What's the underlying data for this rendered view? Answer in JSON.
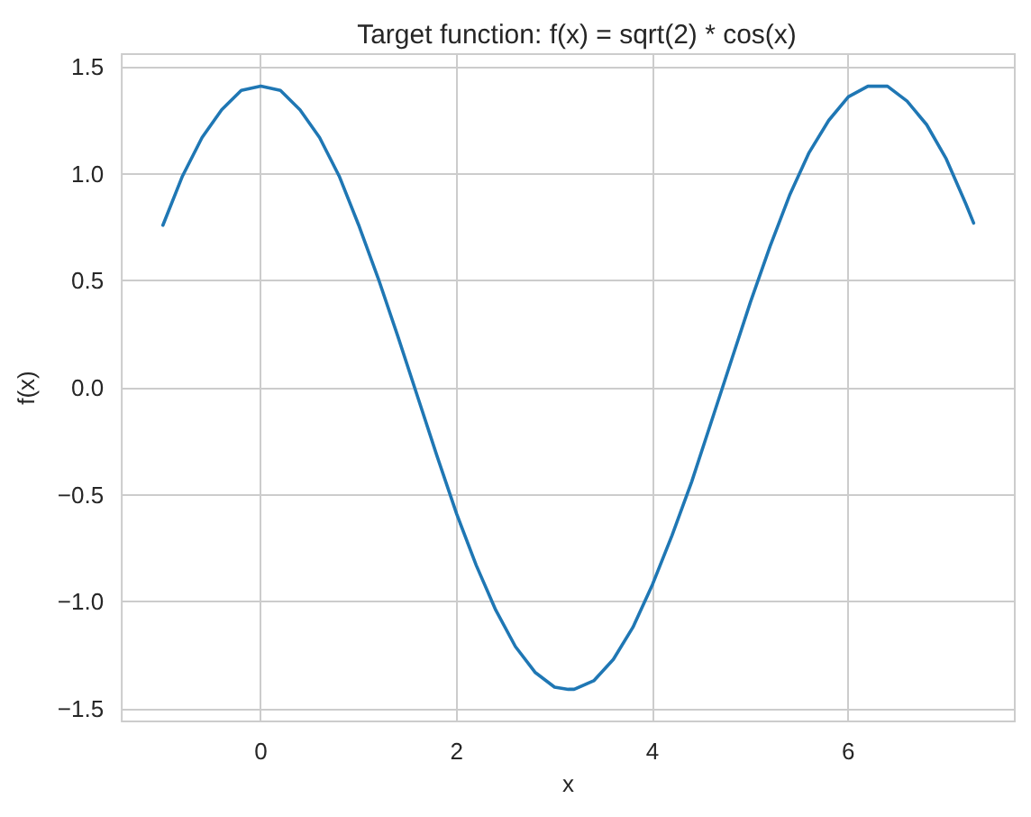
{
  "chart_data": {
    "type": "line",
    "title": "Target function: f(x) = sqrt(2) * cos(x)",
    "xlabel": "x",
    "ylabel": "f(x)",
    "x": [
      -1,
      -0.8,
      -0.6,
      -0.4,
      -0.2,
      0,
      0.2,
      0.4,
      0.6,
      0.8,
      1,
      1.2,
      1.4,
      1.6,
      1.8,
      2,
      2.2,
      2.4,
      2.6,
      2.8,
      3,
      3.14,
      3.2,
      3.4,
      3.6,
      3.8,
      4,
      4.2,
      4.4,
      4.6,
      4.8,
      5,
      5.2,
      5.4,
      5.6,
      5.8,
      6,
      6.2,
      6.28,
      6.4,
      6.6,
      6.8,
      7,
      7.2,
      7.28
    ],
    "values": [
      0.76,
      0.99,
      1.17,
      1.3,
      1.39,
      1.41,
      1.39,
      1.3,
      1.17,
      0.99,
      0.76,
      0.51,
      0.24,
      -0.04,
      -0.32,
      -0.59,
      -0.83,
      -1.04,
      -1.21,
      -1.33,
      -1.4,
      -1.41,
      -1.41,
      -1.37,
      -1.27,
      -1.12,
      -0.92,
      -0.69,
      -0.44,
      -0.16,
      0.12,
      0.4,
      0.66,
      0.9,
      1.1,
      1.25,
      1.36,
      1.41,
      1.41,
      1.41,
      1.34,
      1.23,
      1.07,
      0.86,
      0.77
    ],
    "color": "#1f77b4",
    "xlim": [
      -1.42,
      7.7
    ],
    "ylim": [
      -1.56,
      1.56
    ],
    "xticks": [
      0,
      2,
      4,
      6
    ],
    "yticks": [
      {
        "value": -1.5,
        "label": "−1.5"
      },
      {
        "value": -1,
        "label": "−1.0"
      },
      {
        "value": -0.5,
        "label": "−0.5"
      },
      {
        "value": 0,
        "label": "0.0"
      },
      {
        "value": 0.5,
        "label": "0.5"
      },
      {
        "value": 1,
        "label": "1.0"
      },
      {
        "value": 1.5,
        "label": "1.5"
      }
    ],
    "grid": true,
    "marker": "none",
    "line_style": "solid"
  }
}
